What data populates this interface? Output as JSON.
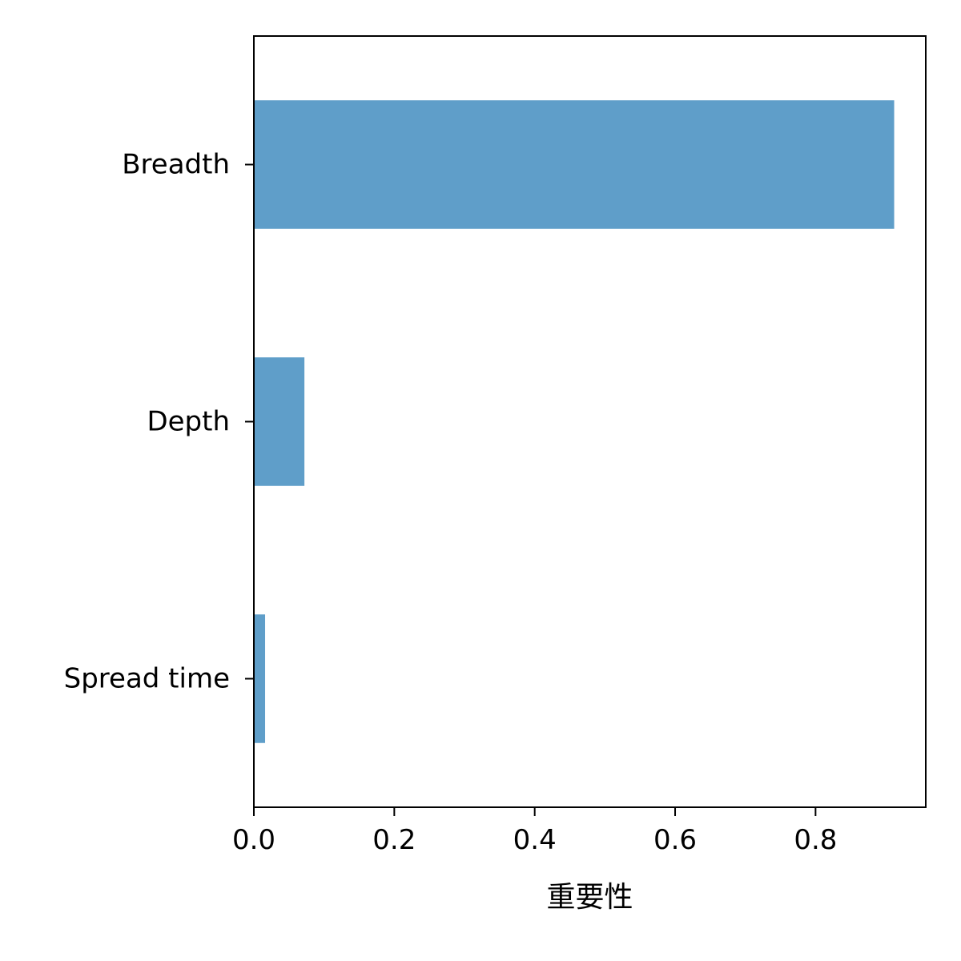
{
  "chart_data": {
    "type": "bar",
    "orientation": "horizontal",
    "categories": [
      "Breadth",
      "Depth",
      "Spread time"
    ],
    "values": [
      0.912,
      0.072,
      0.016
    ],
    "title": "",
    "xlabel": "重要性",
    "ylabel": "",
    "xlim": [
      0,
      0.957
    ],
    "xticks": [
      0.0,
      0.2,
      0.4,
      0.6,
      0.8
    ],
    "xtick_labels": [
      "0.0",
      "0.2",
      "0.4",
      "0.6",
      "0.8"
    ],
    "grid": false,
    "bar_color": "#5f9ec9",
    "axis_color": "#000000"
  }
}
